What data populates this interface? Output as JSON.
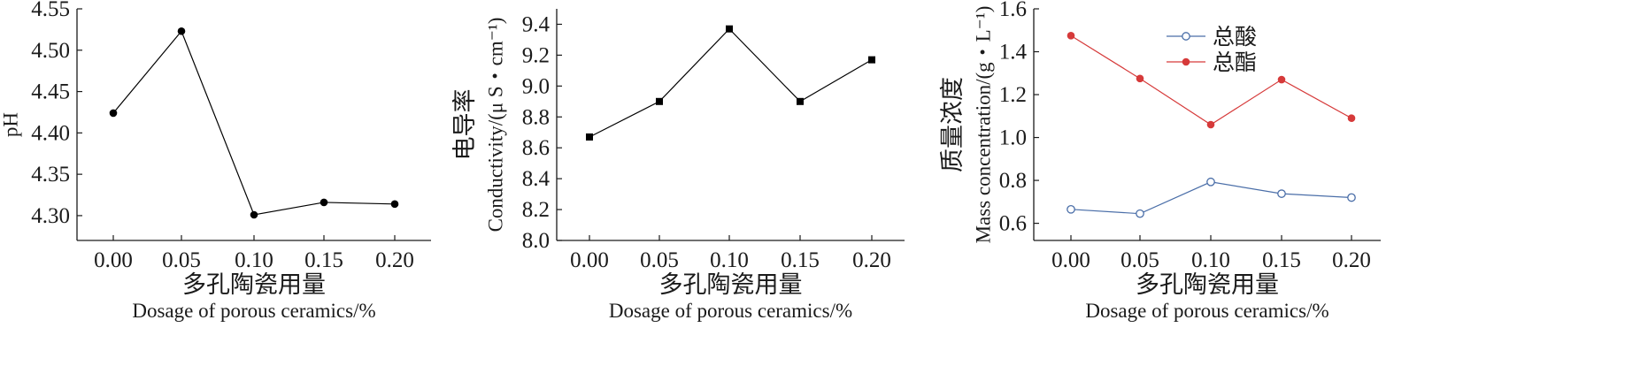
{
  "chart_data": [
    {
      "type": "line",
      "x": [
        "0.00",
        "0.05",
        "0.10",
        "0.15",
        "0.20"
      ],
      "series": [
        {
          "values": [
            4.424,
            4.523,
            4.301,
            4.316,
            4.314
          ],
          "color": "#000000",
          "marker": "circle-filled"
        }
      ],
      "xlabel_cn": "多孔陶瓷用量",
      "xlabel_en": "Dosage of porous ceramics/%",
      "ylabel_cn": "",
      "ylabel_en": "pH",
      "ylim": [
        4.27,
        4.55
      ],
      "yticks": [
        "4.30",
        "4.35",
        "4.40",
        "4.45",
        "4.50",
        "4.55"
      ],
      "grid": false
    },
    {
      "type": "line",
      "x": [
        "0.00",
        "0.05",
        "0.10",
        "0.15",
        "0.20"
      ],
      "series": [
        {
          "values": [
            8.67,
            8.9,
            9.37,
            8.9,
            9.17
          ],
          "color": "#000000",
          "marker": "square-filled"
        }
      ],
      "xlabel_cn": "多孔陶瓷用量",
      "xlabel_en": "Dosage of porous ceramics/%",
      "ylabel_cn": "电导率",
      "ylabel_en": "Conductivity/(μ S・cm⁻¹)",
      "ylim": [
        8.0,
        9.5
      ],
      "yticks": [
        "8.0",
        "8.2",
        "8.4",
        "8.6",
        "8.8",
        "9.0",
        "9.2",
        "9.4"
      ],
      "grid": false
    },
    {
      "type": "line",
      "x": [
        "0.00",
        "0.05",
        "0.10",
        "0.15",
        "0.20"
      ],
      "series": [
        {
          "name": "总酸",
          "values": [
            0.665,
            0.645,
            0.793,
            0.738,
            0.72
          ],
          "color": "#4a6ea8",
          "marker": "circle-open"
        },
        {
          "name": "总酯",
          "values": [
            1.475,
            1.275,
            1.06,
            1.27,
            1.09
          ],
          "color": "#d63a3a",
          "marker": "circle-filled"
        }
      ],
      "xlabel_cn": "多孔陶瓷用量",
      "xlabel_en": "Dosage of porous ceramics/%",
      "ylabel_cn": "质量浓度",
      "ylabel_en": "Mass concentration/(g・L⁻¹)",
      "ylim": [
        0.52,
        1.6
      ],
      "yticks": [
        "0.6",
        "0.8",
        "1.0",
        "1.2",
        "1.4",
        "1.6"
      ],
      "legend": "top-center",
      "grid": false
    }
  ]
}
